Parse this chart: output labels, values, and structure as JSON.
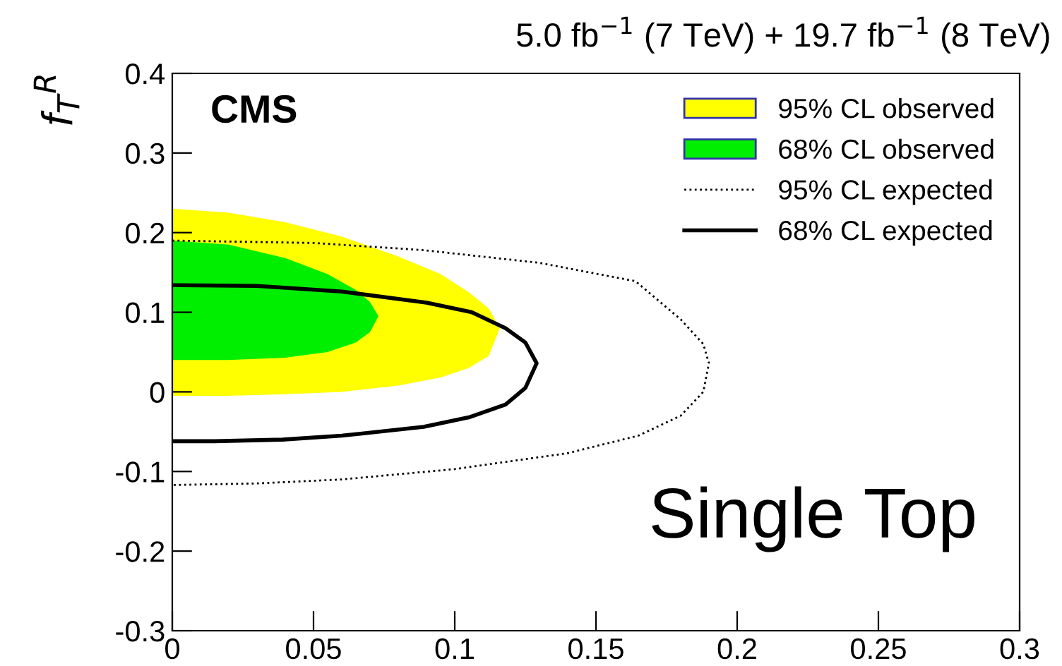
{
  "chart_data": {
    "type": "area",
    "title": "5.0 fb$^{−1}$ (7 TeV) + 19.7 fb$^{−1}$ (8 TeV)",
    "ylabel": "f$_{T}$$^{R}$",
    "annotations": [
      "CMS",
      "Single Top"
    ],
    "xlim": [
      0,
      0.3
    ],
    "xticks": [
      0,
      0.05,
      0.1,
      0.15,
      0.2,
      0.25,
      0.3
    ],
    "ylim": [
      -0.3,
      0.4
    ],
    "yticks": [
      -0.3,
      -0.2,
      -0.1,
      0,
      0.1,
      0.2,
      0.3,
      0.4
    ],
    "grid": false,
    "legend": "top right",
    "series": [
      {
        "name": "95% CL observed",
        "color": "#ffff00",
        "x": [
          0,
          0.02,
          0.04,
          0.06,
          0.08,
          0.095,
          0.105,
          0.112,
          0.116,
          0.112,
          0.105,
          0.095,
          0.08,
          0.06,
          0.04,
          0.02,
          0
        ],
        "values": [
          0.23,
          0.225,
          0.213,
          0.195,
          0.17,
          0.148,
          0.125,
          0.105,
          0.08,
          0.045,
          0.03,
          0.018,
          0.008,
          0.0,
          -0.003,
          -0.005,
          -0.005
        ]
      },
      {
        "name": "68% CL observed",
        "color": "#00ee00",
        "x": [
          0,
          0.02,
          0.04,
          0.055,
          0.065,
          0.07,
          0.073,
          0.07,
          0.065,
          0.055,
          0.04,
          0.02,
          0
        ],
        "values": [
          0.19,
          0.185,
          0.168,
          0.148,
          0.128,
          0.113,
          0.095,
          0.075,
          0.062,
          0.05,
          0.043,
          0.04,
          0.04
        ]
      },
      {
        "name": "95% CL expected",
        "type": "line",
        "color": "#000000",
        "line_style": "dotted",
        "x": [
          0,
          0.05,
          0.089,
          0.13,
          0.164,
          0.18,
          0.188,
          0.19,
          0.188,
          0.18,
          0.165,
          0.14,
          0.1,
          0.06,
          0.03,
          0
        ],
        "values": [
          0.19,
          0.187,
          0.178,
          0.162,
          0.139,
          0.091,
          0.06,
          0.036,
          0.0,
          -0.03,
          -0.055,
          -0.077,
          -0.097,
          -0.11,
          -0.115,
          -0.117
        ]
      },
      {
        "name": "68% CL expected",
        "type": "line",
        "color": "#000000",
        "line_style": "solid",
        "x": [
          0,
          0.03,
          0.06,
          0.09,
          0.106,
          0.118,
          0.125,
          0.129,
          0.125,
          0.118,
          0.105,
          0.089,
          0.06,
          0.039,
          0.015,
          0
        ],
        "values": [
          0.134,
          0.133,
          0.126,
          0.112,
          0.1,
          0.08,
          0.062,
          0.036,
          0.005,
          -0.016,
          -0.032,
          -0.044,
          -0.055,
          -0.06,
          -0.062,
          -0.062
        ]
      }
    ]
  }
}
